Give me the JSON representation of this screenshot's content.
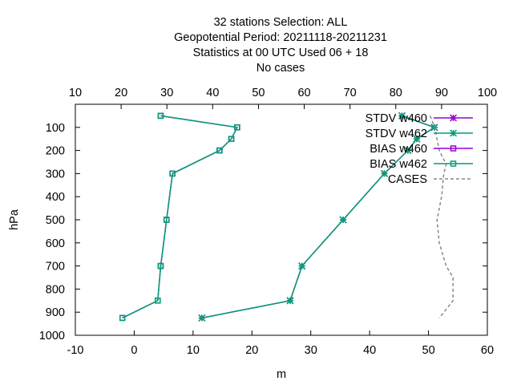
{
  "chart_data": {
    "type": "line",
    "title_lines": [
      "32 stations Selection: ALL",
      "Geopotential  Period: 20211118-20211231",
      "Statistics at 00 UTC  Used  06  + 18",
      "No cases"
    ],
    "xlabel": "m",
    "ylabel": "hPa",
    "xlim": [
      -10,
      60
    ],
    "x2lim": [
      10,
      100
    ],
    "ylim": [
      1000,
      0
    ],
    "xticks": [
      -10,
      0,
      10,
      20,
      30,
      40,
      50,
      60
    ],
    "x2ticks": [
      10,
      20,
      30,
      40,
      50,
      60,
      70,
      80,
      90,
      100
    ],
    "yticks": [
      100,
      200,
      300,
      400,
      500,
      600,
      700,
      800,
      900,
      1000
    ],
    "grid": false,
    "legend_position": "top-right",
    "series": [
      {
        "name": "STDV w460",
        "axis": "x",
        "color": "#9400d3",
        "marker": "star",
        "dash": false,
        "points": [
          [
            45.5,
            50
          ],
          [
            51.0,
            100
          ],
          [
            48.0,
            150
          ],
          [
            46.5,
            200
          ],
          [
            42.5,
            300
          ],
          [
            35.5,
            500
          ],
          [
            28.5,
            700
          ],
          [
            26.5,
            850
          ],
          [
            11.5,
            925
          ]
        ]
      },
      {
        "name": "STDV w462",
        "axis": "x",
        "color": "#009e73",
        "marker": "star",
        "dash": false,
        "points": [
          [
            45.5,
            50
          ],
          [
            51.0,
            100
          ],
          [
            48.0,
            150
          ],
          [
            46.5,
            200
          ],
          [
            42.5,
            300
          ],
          [
            35.5,
            500
          ],
          [
            28.5,
            700
          ],
          [
            26.5,
            850
          ],
          [
            11.5,
            925
          ]
        ]
      },
      {
        "name": "BIAS w460",
        "axis": "x",
        "color": "#9400d3",
        "marker": "square",
        "dash": false,
        "points": [
          [
            4.5,
            50
          ],
          [
            17.5,
            100
          ],
          [
            16.5,
            150
          ],
          [
            14.5,
            200
          ],
          [
            6.5,
            300
          ],
          [
            5.5,
            500
          ],
          [
            4.5,
            700
          ],
          [
            4.0,
            850
          ],
          [
            -2.0,
            925
          ]
        ]
      },
      {
        "name": "BIAS w462",
        "axis": "x",
        "color": "#009e73",
        "marker": "square",
        "dash": false,
        "points": [
          [
            4.5,
            50
          ],
          [
            17.5,
            100
          ],
          [
            16.5,
            150
          ],
          [
            14.5,
            200
          ],
          [
            6.5,
            300
          ],
          [
            5.5,
            500
          ],
          [
            4.5,
            700
          ],
          [
            4.0,
            850
          ],
          [
            -2.0,
            925
          ]
        ]
      },
      {
        "name": "CASES",
        "axis": "x2",
        "color": "#888888",
        "marker": "none",
        "dash": true,
        "points": [
          [
            87.5,
            50
          ],
          [
            88.5,
            100
          ],
          [
            89.0,
            150
          ],
          [
            89.5,
            200
          ],
          [
            91.0,
            260
          ],
          [
            90.5,
            300
          ],
          [
            90.0,
            400
          ],
          [
            89.0,
            500
          ],
          [
            89.5,
            600
          ],
          [
            91.0,
            700
          ],
          [
            92.5,
            750
          ],
          [
            92.5,
            850
          ],
          [
            89.5,
            925
          ]
        ]
      }
    ]
  }
}
